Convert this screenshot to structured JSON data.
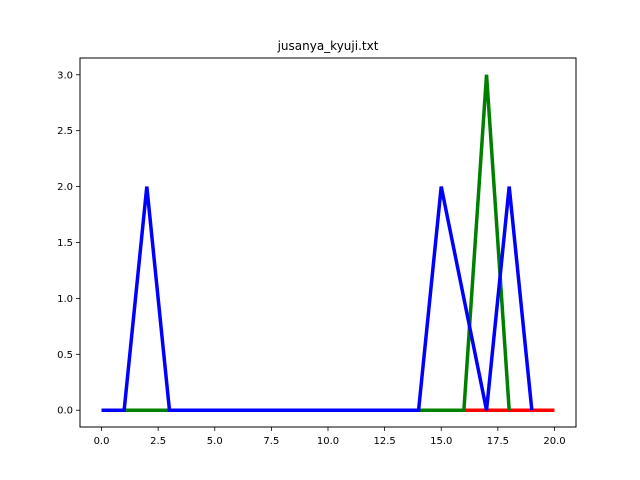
{
  "chart_data": {
    "type": "line",
    "title": "jusanya_kyuji.txt",
    "xlabel": "",
    "ylabel": "",
    "xlim": [
      -0.95,
      20.95
    ],
    "ylim": [
      -0.15,
      3.15
    ],
    "xticks": [
      0.0,
      2.5,
      5.0,
      7.5,
      10.0,
      12.5,
      15.0,
      17.5,
      20.0
    ],
    "xtick_labels": [
      "0.0",
      "2.5",
      "5.0",
      "7.5",
      "10.0",
      "12.5",
      "15.0",
      "17.5",
      "20.0"
    ],
    "yticks": [
      0.0,
      0.5,
      1.0,
      1.5,
      2.0,
      2.5,
      3.0
    ],
    "ytick_labels": [
      "0.0",
      "0.5",
      "1.0",
      "1.5",
      "2.0",
      "2.5",
      "3.0"
    ],
    "grid": false,
    "series": [
      {
        "color": "#ff0000",
        "x": [
          0,
          1,
          2,
          3,
          4,
          5,
          6,
          7,
          8,
          9,
          10,
          11,
          12,
          13,
          14,
          15,
          16,
          17,
          18,
          19,
          20
        ],
        "values": [
          0,
          0,
          0,
          0,
          0,
          0,
          0,
          0,
          0,
          0,
          0,
          0,
          0,
          0,
          0,
          0,
          0,
          0,
          0,
          0,
          0
        ]
      },
      {
        "color": "#008000",
        "x": [
          0,
          1,
          2,
          3,
          4,
          5,
          6,
          7,
          8,
          9,
          10,
          11,
          12,
          13,
          14,
          15,
          16,
          17,
          18
        ],
        "values": [
          0,
          0,
          0,
          0,
          0,
          0,
          0,
          0,
          0,
          0,
          0,
          0,
          0,
          0,
          0,
          0,
          0,
          3,
          0
        ]
      },
      {
        "color": "#0000ff",
        "x": [
          0,
          1,
          2,
          3,
          4,
          5,
          6,
          7,
          8,
          9,
          10,
          11,
          12,
          13,
          14,
          15,
          16,
          17,
          18,
          19
        ],
        "values": [
          0,
          0,
          2,
          0,
          0,
          0,
          0,
          0,
          0,
          0,
          0,
          0,
          0,
          0,
          0,
          2,
          1,
          0,
          2,
          0
        ]
      }
    ]
  }
}
